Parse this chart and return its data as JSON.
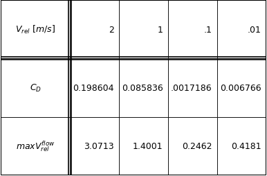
{
  "row_labels": [
    "$V_{rel}$ $[m/s]$",
    "$C_D$",
    "$maxV_{rel}^{flow}$"
  ],
  "col_values": [
    [
      "2",
      "1",
      ".1",
      ".01"
    ],
    [
      "0.198604",
      "0.085836",
      ".0017186",
      "0.006766"
    ],
    [
      "3.0713",
      "1.4001",
      "0.2462",
      "0.4181"
    ]
  ],
  "background_color": "#ffffff",
  "border_color": "#000000",
  "font_size": 9
}
